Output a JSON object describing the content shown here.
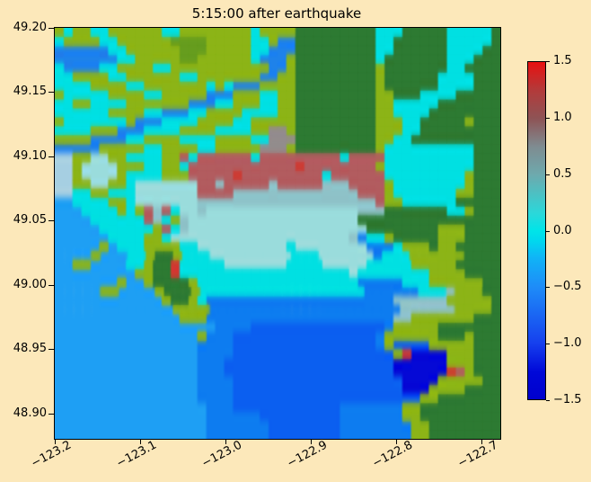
{
  "figure": {
    "title": "5:15:00 after earthquake",
    "background": "#fce8ba",
    "text_color": "#000000"
  },
  "axes": {
    "x_tick_labels": [
      "−123.2",
      "−123.1",
      "−123.0",
      "−122.9",
      "−122.8",
      "−122.7"
    ],
    "y_tick_labels": [
      "49.20",
      "49.15",
      "49.10",
      "49.05",
      "49.00",
      "48.95",
      "48.90"
    ]
  },
  "colorbar": {
    "tick_labels": [
      "1.5",
      "1.0",
      "0.5",
      "0.0",
      "−0.5",
      "−1.0",
      "−1.5"
    ],
    "tick_values": [
      1.5,
      1.0,
      0.5,
      0.0,
      -0.5,
      -1.0,
      -1.5
    ],
    "min": -1.5,
    "max": 1.5,
    "stops": [
      [
        0.0,
        "#0000cd"
      ],
      [
        0.08,
        "#0008d8"
      ],
      [
        0.167,
        "#1640ee"
      ],
      [
        0.333,
        "#1e8cf8"
      ],
      [
        0.42,
        "#10b4f6"
      ],
      [
        0.47,
        "#00d8ee"
      ],
      [
        0.5,
        "#00e4e8"
      ],
      [
        0.55,
        "#2ad8da"
      ],
      [
        0.667,
        "#6ea9ad"
      ],
      [
        0.75,
        "#7f8b90"
      ],
      [
        0.833,
        "#8e5355"
      ],
      [
        0.917,
        "#b33a3a"
      ],
      [
        1.0,
        "#e81010"
      ]
    ]
  },
  "chart_data": {
    "type": "heatmap",
    "title": "5:15:00 after earthquake",
    "xlabel": "",
    "ylabel": "",
    "x_ticks": [
      -123.2,
      -123.1,
      -123.0,
      -122.9,
      -122.8,
      -122.7
    ],
    "y_ticks": [
      49.2,
      49.15,
      49.1,
      49.05,
      49.0,
      48.95,
      48.9
    ],
    "x_range": [
      -123.2011,
      -122.679
    ],
    "y_range": [
      48.881,
      49.2007
    ],
    "colorbar_range": [
      -1.5,
      1.5
    ],
    "grid_on": false,
    "legend": "colorbar right, sea-surface elevation scale",
    "palette": {
      "g": "#8cb417",
      "d": "#679e1e",
      "G": "#2e7a33",
      "c": "#00e0e2",
      "C": "#9adcdc",
      "t": "#8ec2c8",
      "p": "#a6cfe2",
      "r": "#b25c60",
      "R": "#cf3a31",
      "b": "#1e82ea",
      "o": "#1e9ff4",
      "O": "#0d7cf0",
      "B": "#0b5ff0",
      "D": "#0509d6",
      "m": "#938c8c"
    },
    "palette_legend": {
      "g": "low land (olive green)",
      "d": "mid land texture",
      "G": "high land (dark green)",
      "c": "flooded land / cyan near-zero water",
      "C": "pale cyan shallow bay head",
      "t": "gray-teal transition water",
      "p": "pale blue mudflat water",
      "r": "positive wave amplitude on land (rose)",
      "R": "strong positive amplitude (red)",
      "b": "river channel",
      "o": "light ocean",
      "O": "mid ocean",
      "B": "deeper drawdown water",
      "D": "strong negative drawdown (navy)",
      "m": "urban gray"
    },
    "grid": [
      "gcggccggggggccggggggggcggggGGGGGGGGGcccGGGGGcccccG",
      "cggggccggggggddddgggggccgbbGGGGGGGGGccGGGGGGcccccG",
      "bbbbbbccggggggdddgggggccbbbGGGGGGGGGccGGGGGGccccGG",
      "bbbbbbbccgggggddggggggcbbbgGGGGGGGGGcGGGGGGGcccGGG",
      "cbbbbccggggccgggggggggggbbgGGGGGGGGGgGGGGGGGccGGGG",
      "ccggggccggggggccgggggggbbggGGGGGGGGGgGGGGGGccccGGG",
      "ccccggggccgggggggcgcbbbggggGGGGGGGGGgGGGGGGccccGGG",
      "gcccccggggccgggggbbbgggccggGGGGGGGGGggGGGccccGGGGG",
      "ccggccccgggggggbbbccgggccggGGGGGGGGGggcccccGGGGGGG",
      "ccccccggggccbbbccggggccccggGGGGGGGGGggccccGGGGGGGG",
      "gcccccccgbbbccccggggccgggggGGGGGGGGGgggccGGGGGgGGG",
      "ccccgggbbbccccggggccccggmmgGGGGGGGGGgggccGGGGGGGGG",
      "ggggbbbbccggggccccggggccmmmGGGGGGGGGggccGGGGGGGGGG",
      "bbbbbgggggccggggccgggggmmmgGGGGGGGGGgccccccccccGGG",
      "ppggCCggccccggrcrrrrrrcrrrrrrrrrcrrrrccccccccccGGG",
      "ppgCCCCgggccggcrrrrrrrrrrrrRrrrrrrrrgccccccccccGGG",
      "ppgCCCCgccccgggrrrrrRrrrrrrrrrcrrrrrrcccccccccgGGG",
      "ppggCCggcCCCCCCCrrtrrrrrtrrrrrtttrrrrgccccccccgGGG",
      "ppccggcccCCCCCCCrrrrttttttttttttttrrrgcccccccggGGG",
      "ooccccggcCCCCCCCttttttttttttttttttttrggccccccGGGGG",
      "oooccccgcgrtrcCCtCCCCCCCCCCCCCCCCCtttGGGGGGGccgGGG",
      "ooooccccccrtcgtCCCCCCCCCCCCCCCCCCCGGGGGGGGGGGGGGGG",
      "oooooccccccgrctCCCCCCCCCCCCCCCCCCCCGGGGGGGGgggGGGG",
      "ooooooccccggcCCCCCCCCCCCCCCCCCCCCtOccgGGGGGgggGGGG",
      "ooooogocccggggccCCCCCCCCCCcCCCCCCCCOOOcgggGggGGGGG",
      "oooogoooccgGGgcccCCCCCCCCCcccCCCCCCOcccggggggGGGG",
      "ooggooooccgGGRcccccCCCCCCCccccCCCCCcccccgggggGGGGG",
      "oooooooooggGGRcccccccccccccccccccCccccccccggggGGGG",
      "ooooooogoogGGGGgccccccccccccccccccOOOOOcccggggggGG",
      "oooooggoooogGGGgccccccccccccccccccOOOOOOccctgggGG",
      "oooooooooooogGGgcOOOOOOOOOOOOOOOOOOOOOttttttgggggG",
      "oooooooooooooggggOOOOOOOOOOOOOOOOOOOOOttttttggggG",
      "oooooooooooooogggOOOOOOOOOOOOOOOOOOOOOttgggggggGGG",
      "ooooooooooooooooooOOOOBBBBBBBBBBBBBBBOgggggGGGGGGG",
      "oooooooooooooooogOOOBBBBBBBBBBBBBBBBOggggggGGGgGGG",
      "ooooooooooooooooOOOOBBBBBBBBBBBBBBBBOgBBBBgggggGGG",
      "ooooooooooooooooOOOOBBBBBBBBBBBBBBBBBBgRDDDDgggGGG",
      "ooooooooooooooooOOOBBBBBBBBBBBBBBBBBBBDDDDDDgggGGG",
      "ooooooooooooooooOOOBBBBBBBBBBBBBBBBBBBDDDDDDRrgGGG",
      "ooooooooooooooooOOOOBBBBBBBBBBBBBBBBBBBDDDDgggggGG",
      "ooooooooooooooooOOOOBBBBBBBBBBBBBBBBBBBDDDggggGGGG",
      "ooooooooooooooooOOOOBBBBBBBBBBBBBBBBBBBBBggGGGGGGG",
      "oooooooooooooooooOOOBBBBBBBBBBBBOOOOOOOggGGGGGGGGG",
      "oooooooooooooooooOOOOOOBBBBBBBBBOOOOOOOggGGGGGGGGG",
      "oooooooooooooooooOOOOOOOBBBBBBBBOOOOOOOOggGGGGGGGG",
      "oooooooooooooooooOOOOOOOBBBBBBBBOOOOOOOOggGGGGGGGG"
    ]
  }
}
